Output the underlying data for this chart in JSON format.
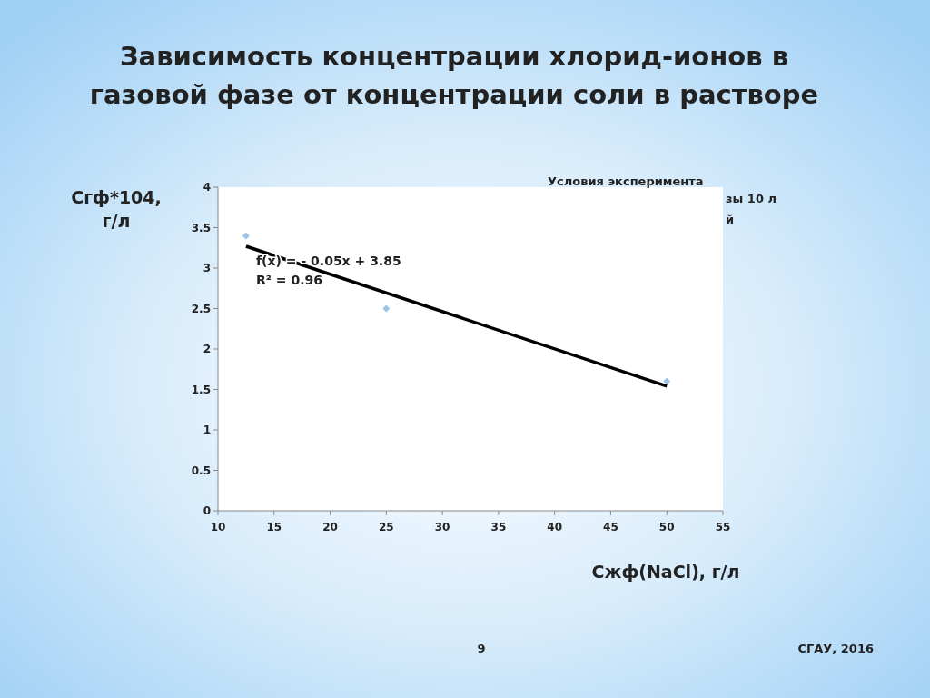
{
  "chart_data": {
    "type": "scatter",
    "title": "Зависимость концентрации хлорид-ионов в газовой фазе от концентрации соли в растворе",
    "xlabel": "Сжф(NaCl), г/л",
    "ylabel": "Сгф*104, г/л",
    "annotations": [
      "f(x) = - 0.05x + 3.85",
      "R² = 0.96",
      "Условия эксперимента",
      "зы 10 л",
      "й",
      "9",
      "СГАУ, 2016"
    ],
    "series": [
      {
        "color": "#9dc3e6",
        "marker": "diamond",
        "x": [
          12.5,
          25,
          50
        ],
        "values": [
          3.4,
          2.5,
          1.6
        ]
      },
      {
        "type": "line",
        "color": "#000000",
        "marker": "none",
        "line_style": "solid",
        "x": [
          12.5,
          50
        ],
        "values": [
          3.27,
          1.54
        ]
      }
    ],
    "xlim": [
      10,
      55
    ],
    "xticks": [
      10,
      15,
      20,
      25,
      30,
      35,
      40,
      45,
      50,
      55
    ],
    "ylim": [
      0,
      4
    ],
    "yticks": [
      0,
      0.5,
      1,
      1.5,
      2,
      2.5,
      3,
      3.5,
      4
    ],
    "grid": false
  }
}
